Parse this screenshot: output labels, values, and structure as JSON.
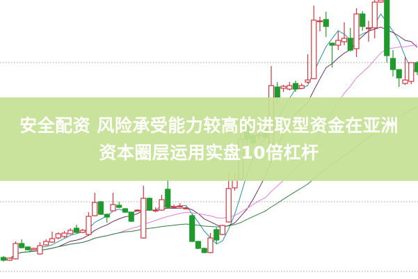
{
  "banner": {
    "line1": "安全配资  风险承受能力较高的进取型资金在亚洲",
    "line2": "资本圈层运用实盘10倍杠杆",
    "background_color": "#c5e094"
  },
  "chart_data": {
    "type": "candlestick",
    "title": "",
    "xlabel": "",
    "ylabel": "",
    "grid": "horizontal dotted",
    "ylim": [
      0,
      100
    ],
    "up_color": "#d0343f",
    "down_color": "#1e9a2e",
    "moving_averages": [
      {
        "period": 5,
        "color": "#2a8fa0"
      },
      {
        "period": 10,
        "color": "#6b2a5a"
      },
      {
        "period": 20,
        "color": "#e27fe0"
      },
      {
        "period": 40,
        "color": "#2f7d3a"
      }
    ],
    "candles": [
      [
        7.5,
        8,
        6,
        6.5
      ],
      [
        6.5,
        7.5,
        6.25,
        7.25
      ],
      [
        7,
        13.25,
        6.75,
        12.5
      ],
      [
        12.5,
        14,
        10.75,
        11
      ],
      [
        11.25,
        11.5,
        10,
        10.25
      ],
      [
        10.25,
        11,
        10,
        10.75
      ],
      [
        8.75,
        13,
        8.5,
        11.75
      ],
      [
        12,
        14,
        11.75,
        13.25
      ],
      [
        13,
        16.75,
        12.75,
        14.25
      ],
      [
        14.5,
        16.5,
        14,
        16
      ],
      [
        15,
        17,
        14.5,
        16.25
      ],
      [
        16,
        18,
        15.75,
        17.25
      ],
      [
        18,
        19.25,
        16,
        16.5
      ],
      [
        16.5,
        17.75,
        16.25,
        17.25
      ],
      [
        15.75,
        23.75,
        15.25,
        22.25
      ],
      [
        22.5,
        30.75,
        22.25,
        27.25
      ],
      [
        27.5,
        27.75,
        22.75,
        23
      ],
      [
        23,
        23.25,
        20,
        22
      ],
      [
        24.25,
        30.75,
        24,
        26.5
      ],
      [
        26.25,
        27.5,
        25.25,
        25.5
      ],
      [
        25,
        25.25,
        23.5,
        23.75
      ],
      [
        23.75,
        24,
        20.25,
        20.5
      ],
      [
        24.25,
        24.75,
        24,
        24.5
      ],
      [
        14.5,
        33.25,
        14.25,
        28.75
      ],
      [
        28.75,
        29,
        24.25,
        24.5
      ],
      [
        24.5,
        25.5,
        23.75,
        24.5
      ],
      [
        24.5,
        30,
        24.25,
        28.25
      ],
      [
        32,
        35.5,
        25.25,
        25.5
      ],
      [
        25.5,
        26.5,
        25.25,
        25.75
      ],
      [
        25.75,
        27,
        25.5,
        26
      ],
      [
        25,
        25.75,
        24.75,
        25.25
      ],
      [
        22.5,
        23,
        13,
        13.25
      ],
      [
        13.25,
        13.5,
        10.5,
        10.75
      ],
      [
        10.75,
        11,
        9,
        9.25
      ],
      [
        9.25,
        16.25,
        9,
        14.5
      ],
      [
        17.5,
        18.25,
        12.5,
        13.75
      ],
      [
        15.75,
        19.25,
        15.5,
        19
      ],
      [
        20.25,
        38.25,
        20,
        32.25
      ],
      [
        32.5,
        38,
        31.5,
        35.25
      ],
      [
        35.75,
        56,
        35,
        50
      ],
      [
        55,
        57,
        48,
        50
      ],
      [
        51.25,
        54,
        47,
        48.75
      ],
      [
        51.25,
        54,
        50,
        51.5
      ],
      [
        53.75,
        55,
        50,
        50.75
      ],
      [
        48.25,
        76.25,
        48,
        69.25
      ],
      [
        68.75,
        70.5,
        62.5,
        65
      ],
      [
        68.25,
        69.5,
        67,
        69
      ],
      [
        68,
        70.5,
        67.5,
        69.25
      ],
      [
        70,
        71,
        67,
        68
      ],
      [
        68.25,
        70,
        68,
        69.25
      ],
      [
        70.5,
        80.5,
        70,
        71.25
      ],
      [
        71.75,
        98,
        71.5,
        92.75
      ],
      [
        92.5,
        94,
        88.75,
        92.5
      ],
      [
        93,
        95.75,
        86.75,
        90.5
      ],
      [
        84.5,
        84.5,
        75.75,
        83.75
      ],
      [
        83.75,
        88.75,
        82,
        85.5
      ],
      [
        85,
        92,
        83.75,
        86.25
      ],
      [
        86.25,
        90,
        81.5,
        82
      ],
      [
        82.5,
        97,
        79.5,
        95
      ],
      [
        95,
        96,
        89,
        90.5
      ],
      [
        90,
        92.5,
        85,
        90
      ],
      [
        90,
        100,
        86.25,
        99.25
      ],
      [
        99.25,
        100,
        99,
        100
      ],
      [
        100,
        100,
        77.5,
        80
      ],
      [
        79,
        82,
        72.5,
        75
      ],
      [
        75,
        75,
        68.75,
        72
      ],
      [
        70,
        79.5,
        69.5,
        71.25
      ],
      [
        70.75,
        77.5,
        69.75,
        77.5
      ],
      [
        77.5,
        78,
        73,
        74.25
      ]
    ],
    "candle_fields": [
      "open",
      "high",
      "low",
      "close"
    ]
  }
}
